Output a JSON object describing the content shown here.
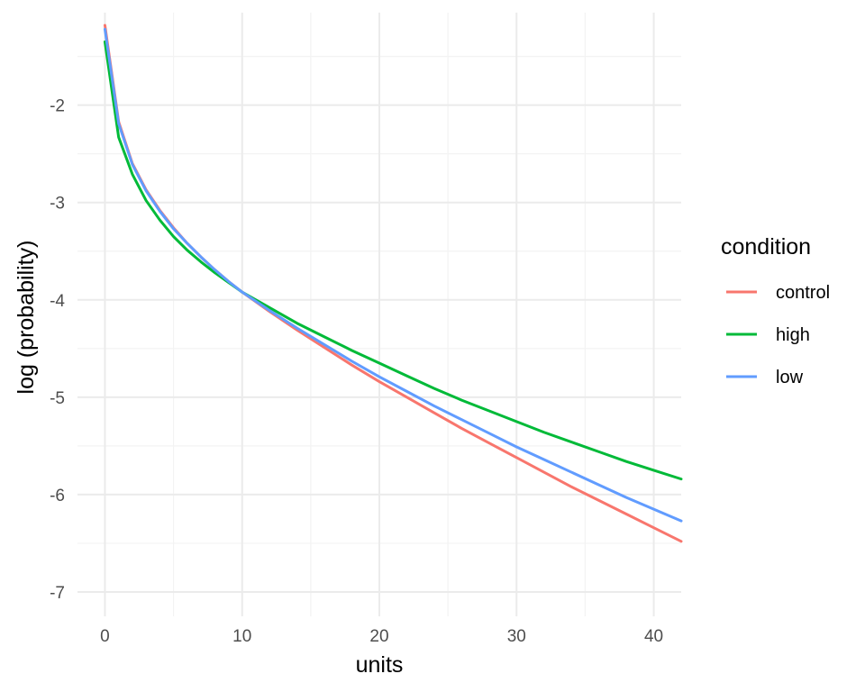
{
  "chart_data": {
    "type": "line",
    "title": "",
    "xlabel": "units",
    "ylabel": "log (probability)",
    "xlim": [
      -2,
      42
    ],
    "ylim": [
      -7.25,
      -1.05
    ],
    "x_ticks": [
      0,
      10,
      20,
      30,
      40
    ],
    "x_tick_labels": [
      "0",
      "10",
      "20",
      "30",
      "40"
    ],
    "x_minor_ticks": [
      5,
      15,
      25,
      35
    ],
    "y_ticks": [
      -7,
      -6,
      -5,
      -4,
      -3,
      -2
    ],
    "y_tick_labels": [
      "-7",
      "-6",
      "-5",
      "-4",
      "-3",
      "-2"
    ],
    "y_minor_ticks": [
      -6.5,
      -5.5,
      -4.5,
      -3.5,
      -2.5,
      -1.5
    ],
    "grid": true,
    "legend": {
      "title": "condition",
      "position": "right"
    },
    "x": [
      0,
      1,
      2,
      3,
      4,
      5,
      6,
      7,
      8,
      9,
      10,
      12,
      14,
      16,
      18,
      20,
      22,
      24,
      26,
      28,
      30,
      32,
      34,
      36,
      38,
      40,
      42
    ],
    "series": [
      {
        "name": "control",
        "color": "#F8766D",
        "values": [
          -1.18,
          -2.17,
          -2.6,
          -2.87,
          -3.08,
          -3.26,
          -3.42,
          -3.56,
          -3.69,
          -3.81,
          -3.92,
          -4.12,
          -4.31,
          -4.49,
          -4.67,
          -4.84,
          -5.0,
          -5.16,
          -5.32,
          -5.47,
          -5.62,
          -5.77,
          -5.92,
          -6.06,
          -6.2,
          -6.34,
          -6.48
        ]
      },
      {
        "name": "high",
        "color": "#00BA38",
        "values": [
          -1.35,
          -2.33,
          -2.71,
          -2.98,
          -3.18,
          -3.35,
          -3.49,
          -3.61,
          -3.72,
          -3.82,
          -3.92,
          -4.08,
          -4.24,
          -4.38,
          -4.52,
          -4.65,
          -4.78,
          -4.91,
          -5.03,
          -5.14,
          -5.25,
          -5.36,
          -5.46,
          -5.56,
          -5.66,
          -5.75,
          -5.84
        ]
      },
      {
        "name": "low",
        "color": "#619CFF",
        "values": [
          -1.22,
          -2.19,
          -2.61,
          -2.88,
          -3.09,
          -3.27,
          -3.42,
          -3.56,
          -3.69,
          -3.81,
          -3.92,
          -4.11,
          -4.29,
          -4.46,
          -4.63,
          -4.79,
          -4.94,
          -5.09,
          -5.23,
          -5.37,
          -5.51,
          -5.64,
          -5.77,
          -5.9,
          -6.03,
          -6.15,
          -6.27
        ]
      }
    ]
  }
}
